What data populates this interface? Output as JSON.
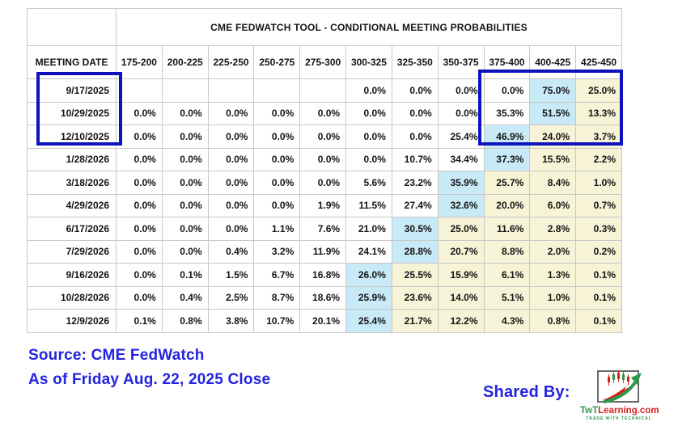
{
  "colors": {
    "highlight_cyan": "#c8eaf6",
    "highlight_yellow": "#f7f3d6",
    "grid_line": "#c8c8c8",
    "annotation_border": "#0d12bd",
    "footer_text": "#2323e0",
    "logo_red": "#d92121",
    "logo_green": "#2a9a4a",
    "logo_border_gray": "#6a6a6a"
  },
  "chart_data": {
    "type": "table",
    "title": "CME FEDWATCH TOOL - CONDITIONAL MEETING PROBABILITIES",
    "row_header": "MEETING DATE",
    "columns": [
      "175-200",
      "200-225",
      "225-250",
      "250-275",
      "275-300",
      "300-325",
      "325-350",
      "350-375",
      "375-400",
      "400-425",
      "425-450"
    ],
    "highlight_legend": {
      "cyan": "highest probability in row",
      "yellow": "probabilities above highest bin"
    },
    "rows": [
      {
        "date": "9/17/2025",
        "values": [
          "",
          "",
          "",
          "",
          "",
          "0.0%",
          "0.0%",
          "0.0%",
          "0.0%",
          "75.0%",
          "25.0%"
        ],
        "highlights": [
          "",
          "",
          "",
          "",
          "",
          "",
          "",
          "",
          "",
          "cyan",
          "yellow"
        ]
      },
      {
        "date": "10/29/2025",
        "values": [
          "0.0%",
          "0.0%",
          "0.0%",
          "0.0%",
          "0.0%",
          "0.0%",
          "0.0%",
          "0.0%",
          "35.3%",
          "51.5%",
          "13.3%"
        ],
        "highlights": [
          "",
          "",
          "",
          "",
          "",
          "",
          "",
          "",
          "",
          "cyan",
          "yellow"
        ]
      },
      {
        "date": "12/10/2025",
        "values": [
          "0.0%",
          "0.0%",
          "0.0%",
          "0.0%",
          "0.0%",
          "0.0%",
          "0.0%",
          "25.4%",
          "46.9%",
          "24.0%",
          "3.7%"
        ],
        "highlights": [
          "",
          "",
          "",
          "",
          "",
          "",
          "",
          "",
          "cyan",
          "yellow",
          "yellow"
        ]
      },
      {
        "date": "1/28/2026",
        "values": [
          "0.0%",
          "0.0%",
          "0.0%",
          "0.0%",
          "0.0%",
          "0.0%",
          "10.7%",
          "34.4%",
          "37.3%",
          "15.5%",
          "2.2%"
        ],
        "highlights": [
          "",
          "",
          "",
          "",
          "",
          "",
          "",
          "",
          "cyan",
          "yellow",
          "yellow"
        ]
      },
      {
        "date": "3/18/2026",
        "values": [
          "0.0%",
          "0.0%",
          "0.0%",
          "0.0%",
          "0.0%",
          "5.6%",
          "23.2%",
          "35.9%",
          "25.7%",
          "8.4%",
          "1.0%"
        ],
        "highlights": [
          "",
          "",
          "",
          "",
          "",
          "",
          "",
          "cyan",
          "yellow",
          "yellow",
          "yellow"
        ]
      },
      {
        "date": "4/29/2026",
        "values": [
          "0.0%",
          "0.0%",
          "0.0%",
          "0.0%",
          "1.9%",
          "11.5%",
          "27.4%",
          "32.6%",
          "20.0%",
          "6.0%",
          "0.7%"
        ],
        "highlights": [
          "",
          "",
          "",
          "",
          "",
          "",
          "",
          "cyan",
          "yellow",
          "yellow",
          "yellow"
        ]
      },
      {
        "date": "6/17/2026",
        "values": [
          "0.0%",
          "0.0%",
          "0.0%",
          "1.1%",
          "7.6%",
          "21.0%",
          "30.5%",
          "25.0%",
          "11.6%",
          "2.8%",
          "0.3%"
        ],
        "highlights": [
          "",
          "",
          "",
          "",
          "",
          "",
          "cyan",
          "yellow",
          "yellow",
          "yellow",
          "yellow"
        ]
      },
      {
        "date": "7/29/2026",
        "values": [
          "0.0%",
          "0.0%",
          "0.4%",
          "3.2%",
          "11.9%",
          "24.1%",
          "28.8%",
          "20.7%",
          "8.8%",
          "2.0%",
          "0.2%"
        ],
        "highlights": [
          "",
          "",
          "",
          "",
          "",
          "",
          "cyan",
          "yellow",
          "yellow",
          "yellow",
          "yellow"
        ]
      },
      {
        "date": "9/16/2026",
        "values": [
          "0.0%",
          "0.1%",
          "1.5%",
          "6.7%",
          "16.8%",
          "26.0%",
          "25.5%",
          "15.9%",
          "6.1%",
          "1.3%",
          "0.1%"
        ],
        "highlights": [
          "",
          "",
          "",
          "",
          "",
          "cyan",
          "yellow",
          "yellow",
          "yellow",
          "yellow",
          "yellow"
        ]
      },
      {
        "date": "10/28/2026",
        "values": [
          "0.0%",
          "0.4%",
          "2.5%",
          "8.7%",
          "18.6%",
          "25.9%",
          "23.6%",
          "14.0%",
          "5.1%",
          "1.0%",
          "0.1%"
        ],
        "highlights": [
          "",
          "",
          "",
          "",
          "",
          "cyan",
          "yellow",
          "yellow",
          "yellow",
          "yellow",
          "yellow"
        ]
      },
      {
        "date": "12/9/2026",
        "values": [
          "0.1%",
          "0.8%",
          "3.8%",
          "10.7%",
          "20.1%",
          "25.4%",
          "21.7%",
          "12.2%",
          "4.3%",
          "0.8%",
          "0.1%"
        ],
        "highlights": [
          "",
          "",
          "",
          "",
          "",
          "cyan",
          "yellow",
          "yellow",
          "yellow",
          "yellow",
          "yellow"
        ]
      }
    ]
  },
  "footer": {
    "source": "Source: CME FedWatch",
    "as_of": "As of Friday Aug. 22, 2025 Close",
    "shared_by": "Shared By:",
    "logo_prefix": "TwT",
    "logo_suffix": "Learning.com",
    "logo_tagline": "TRADE WITH TECHNICAL"
  }
}
